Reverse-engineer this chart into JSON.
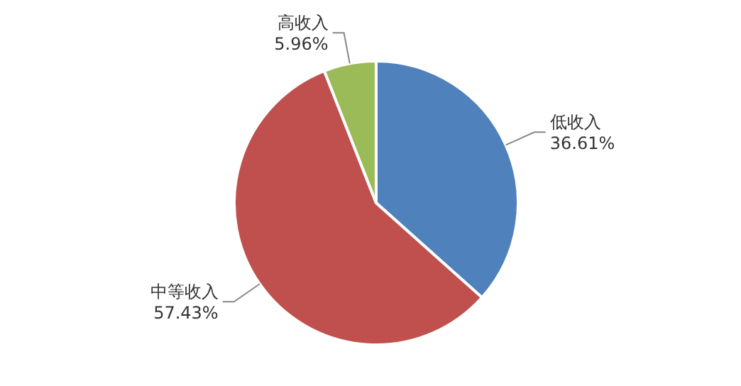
{
  "chart_data": {
    "type": "pie",
    "categories": [
      "低收入",
      "中等收入",
      "高收入"
    ],
    "values": [
      36.61,
      57.43,
      5.96
    ],
    "colors": [
      "#4f81bd",
      "#c0504d",
      "#9bbb59"
    ],
    "value_labels": [
      "36.61%",
      "57.43%",
      "5.96%"
    ],
    "legend": false
  }
}
